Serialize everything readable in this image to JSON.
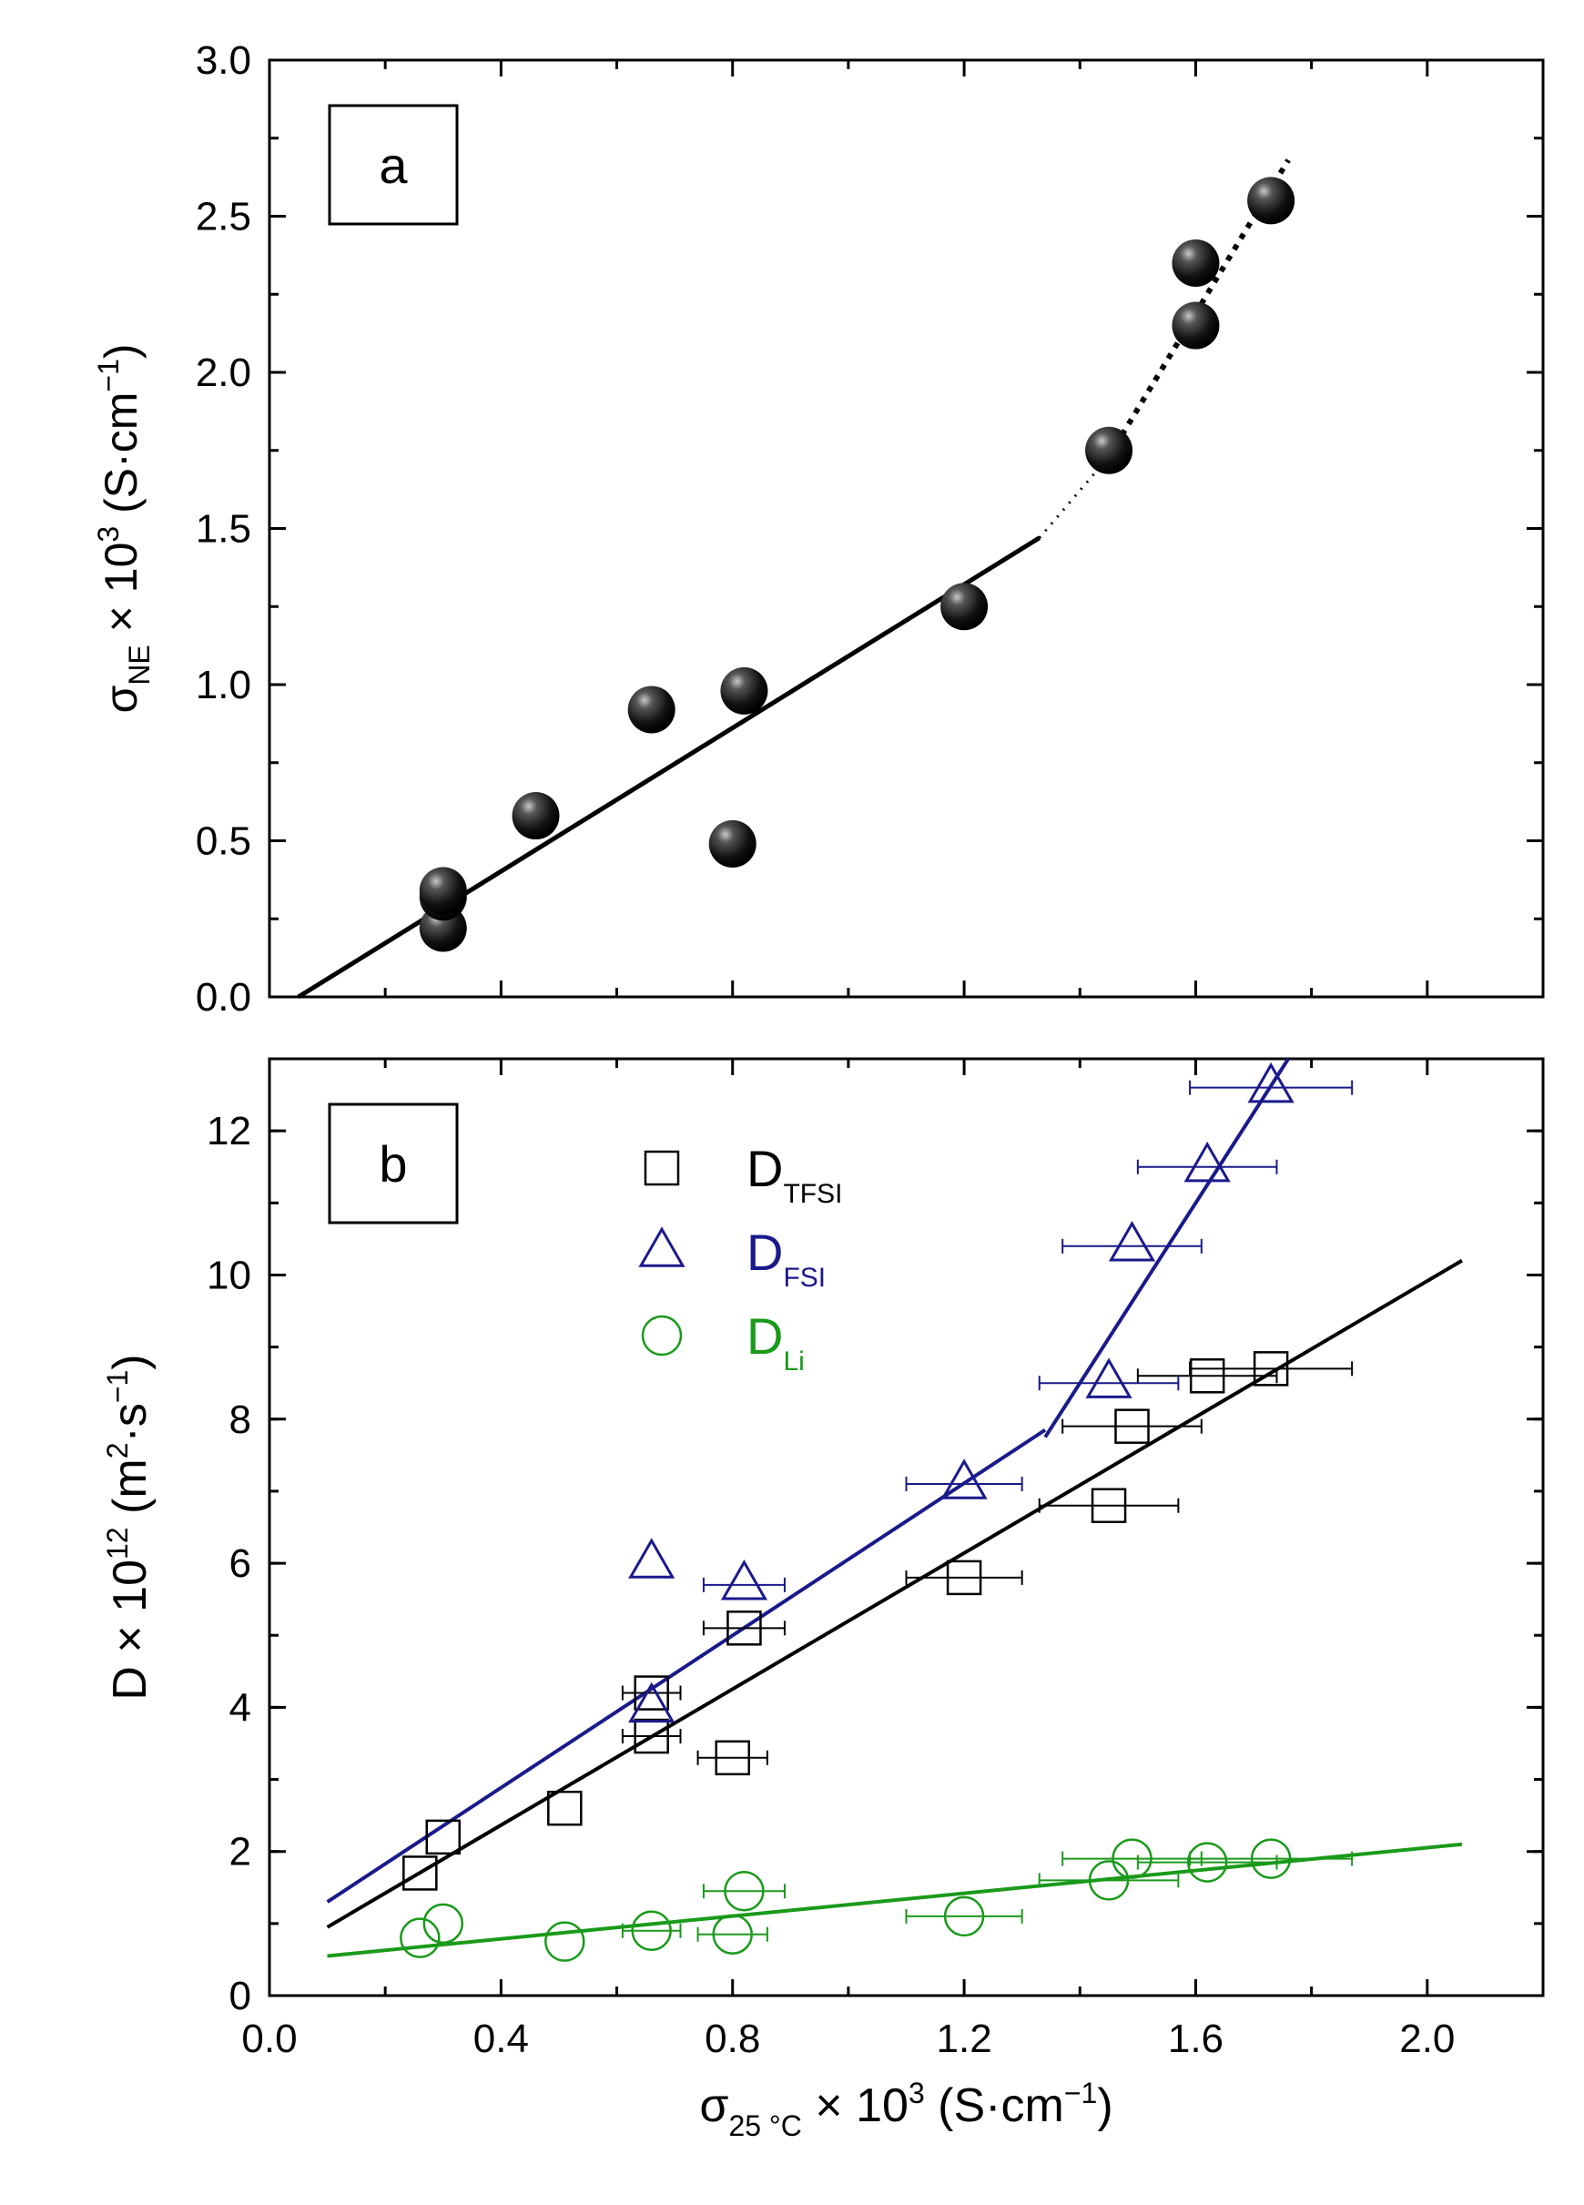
{
  "chart_data": [
    {
      "panel": "a",
      "type": "scatter",
      "panel_label": "a",
      "xlim": [
        0.0,
        2.2
      ],
      "ylim": [
        0.0,
        3.0
      ],
      "ylabel": {
        "main": "σ",
        "sub": "NE",
        "mid": " × 10",
        "sup": "3",
        "end": " (S·cm",
        "sup2": "−1",
        "close": ")"
      },
      "y_ticks": [
        "0.0",
        "0.5",
        "1.0",
        "1.5",
        "2.0",
        "2.5",
        "3.0"
      ],
      "series": [
        {
          "name": "σNE",
          "marker": "sphere",
          "points": [
            [
              0.3,
              0.22
            ],
            [
              0.3,
              0.32
            ],
            [
              0.3,
              0.34
            ],
            [
              0.46,
              0.58
            ],
            [
              0.66,
              0.92
            ],
            [
              0.8,
              0.49
            ],
            [
              0.82,
              0.98
            ],
            [
              1.2,
              1.25
            ],
            [
              1.45,
              1.75
            ],
            [
              1.6,
              2.15
            ],
            [
              1.6,
              2.35
            ],
            [
              1.73,
              2.55
            ]
          ]
        }
      ],
      "fits": [
        {
          "style": "solid",
          "points": [
            [
              0.05,
              0.0
            ],
            [
              1.33,
              1.47
            ]
          ]
        },
        {
          "style": "dotted",
          "points": [
            [
              1.33,
              1.47
            ],
            [
              1.45,
              1.73
            ]
          ]
        },
        {
          "style": "dotted",
          "points": [
            [
              1.45,
              1.73
            ],
            [
              1.76,
              2.68
            ]
          ]
        }
      ]
    },
    {
      "panel": "b",
      "type": "scatter",
      "panel_label": "b",
      "xlim": [
        0.0,
        2.2
      ],
      "ylim": [
        0,
        13
      ],
      "xlabel": {
        "main": "σ",
        "sub": "25 °C",
        "mid": " × 10",
        "sup": "3",
        "end": " (S·cm",
        "sup2": "−1",
        "close": ")"
      },
      "ylabel": {
        "main": "D × 10",
        "sup": "12",
        "mid": " (m",
        "sup2": "2",
        "end": "·s",
        "sup3": "−1",
        "close": ")"
      },
      "x_ticks": [
        "0.0",
        "0.4",
        "0.8",
        "1.2",
        "1.6",
        "2.0"
      ],
      "y_ticks": [
        "0",
        "2",
        "4",
        "6",
        "8",
        "10",
        "12"
      ],
      "legend": [
        {
          "label": "D",
          "sub": "TFSI",
          "color": "#000000",
          "marker": "square"
        },
        {
          "label": "D",
          "sub": "FSI",
          "color": "#1a1a8c",
          "marker": "triangle"
        },
        {
          "label": "D",
          "sub": "Li",
          "color": "#1a9a1a",
          "marker": "circle"
        }
      ],
      "series": [
        {
          "name": "DTFSI",
          "color": "#000000",
          "marker": "square",
          "points": [
            [
              0.26,
              1.7,
              0
            ],
            [
              0.3,
              2.2,
              0
            ],
            [
              0.51,
              2.6,
              0
            ],
            [
              0.66,
              3.6,
              0.05
            ],
            [
              0.66,
              4.2,
              0.05
            ],
            [
              0.8,
              3.3,
              0.06
            ],
            [
              0.82,
              5.1,
              0.07
            ],
            [
              1.2,
              5.8,
              0.1
            ],
            [
              1.45,
              6.8,
              0.12
            ],
            [
              1.49,
              7.9,
              0.12
            ],
            [
              1.62,
              8.6,
              0.12
            ],
            [
              1.73,
              8.7,
              0.14
            ]
          ]
        },
        {
          "name": "DFSI",
          "color": "#1a1a8c",
          "marker": "triangle",
          "points": [
            [
              0.66,
              4.0,
              0
            ],
            [
              0.66,
              6.0,
              0
            ],
            [
              0.82,
              5.7,
              0.07
            ],
            [
              1.2,
              7.1,
              0.1
            ],
            [
              1.45,
              8.5,
              0.12
            ],
            [
              1.49,
              10.4,
              0.12
            ],
            [
              1.62,
              11.5,
              0.12
            ],
            [
              1.73,
              12.6,
              0.14
            ]
          ]
        },
        {
          "name": "DLi",
          "color": "#1a9a1a",
          "marker": "circle",
          "points": [
            [
              0.26,
              0.8,
              0
            ],
            [
              0.3,
              1.0,
              0
            ],
            [
              0.51,
              0.75,
              0
            ],
            [
              0.66,
              0.9,
              0.05
            ],
            [
              0.8,
              0.85,
              0.06
            ],
            [
              0.82,
              1.45,
              0.07
            ],
            [
              1.2,
              1.1,
              0.1
            ],
            [
              1.45,
              1.6,
              0.12
            ],
            [
              1.49,
              1.9,
              0.12
            ],
            [
              1.62,
              1.85,
              0.12
            ],
            [
              1.73,
              1.9,
              0.14
            ]
          ]
        }
      ],
      "fits": [
        {
          "color": "#000000",
          "points": [
            [
              0.1,
              0.95
            ],
            [
              2.06,
              10.2
            ]
          ]
        },
        {
          "color": "#1a1a8c",
          "points": [
            [
              0.1,
              1.3
            ],
            [
              1.34,
              7.85
            ]
          ]
        },
        {
          "color": "#1a1a8c",
          "points": [
            [
              1.34,
              7.75
            ],
            [
              1.76,
              13.0
            ]
          ]
        },
        {
          "color": "#1a9a1a",
          "points": [
            [
              0.1,
              0.55
            ],
            [
              2.06,
              2.1
            ]
          ]
        }
      ]
    }
  ]
}
